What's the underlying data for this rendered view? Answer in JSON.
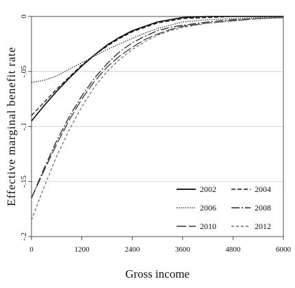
{
  "chart_data": {
    "type": "line",
    "title": "",
    "xlabel": "Gross income",
    "ylabel": "Effective marginal benefit rate",
    "xlim": [
      0,
      6000
    ],
    "ylim": [
      -0.2,
      0
    ],
    "xticks": [
      0,
      1200,
      2400,
      3600,
      4800,
      6000
    ],
    "xtick_labels": [
      "0",
      "1200",
      "2400",
      "3600",
      "4800",
      "6000"
    ],
    "yticks": [
      0,
      -0.05,
      -0.1,
      -0.15,
      -0.2
    ],
    "ytick_labels": [
      "0",
      "-.05",
      "-.1",
      "-.15",
      "-.2"
    ],
    "grid": "horizontal",
    "legend_position": "bottom-right",
    "series": [
      {
        "name": "2002",
        "dash": "solid",
        "x": [
          0,
          300,
          600,
          900,
          1200,
          1500,
          1800,
          2100,
          2400,
          2700,
          3000,
          3300,
          3600,
          4200,
          4800,
          5400,
          6000
        ],
        "y": [
          -0.095,
          -0.081,
          -0.068,
          -0.056,
          -0.045,
          -0.035,
          -0.026,
          -0.019,
          -0.013,
          -0.009,
          -0.005,
          -0.003,
          -0.001,
          0.0,
          0.0,
          0.0,
          0.0
        ]
      },
      {
        "name": "2004",
        "dash": "dashed",
        "x": [
          0,
          300,
          600,
          900,
          1200,
          1500,
          1800,
          2100,
          2400,
          2700,
          3000,
          3300,
          3600,
          4200,
          4800,
          5400,
          6000
        ],
        "y": [
          -0.09,
          -0.078,
          -0.066,
          -0.055,
          -0.044,
          -0.035,
          -0.027,
          -0.02,
          -0.014,
          -0.01,
          -0.006,
          -0.004,
          -0.002,
          -0.001,
          0.0,
          0.0,
          0.0
        ]
      },
      {
        "name": "2006",
        "dash": "dotted",
        "x": [
          0,
          300,
          600,
          900,
          1200,
          1500,
          1800,
          2100,
          2400,
          2700,
          3000,
          3300,
          3600,
          4200,
          4800,
          5400,
          6000
        ],
        "y": [
          -0.06,
          -0.058,
          -0.054,
          -0.048,
          -0.042,
          -0.036,
          -0.03,
          -0.025,
          -0.02,
          -0.015,
          -0.011,
          -0.008,
          -0.005,
          -0.003,
          -0.002,
          -0.001,
          0.0
        ]
      },
      {
        "name": "2008",
        "dash": "longdash",
        "x": [
          0,
          300,
          600,
          900,
          1200,
          1500,
          1800,
          2100,
          2400,
          2700,
          3000,
          3300,
          3600,
          4200,
          4800,
          5400,
          6000
        ],
        "y": [
          -0.165,
          -0.138,
          -0.113,
          -0.091,
          -0.072,
          -0.056,
          -0.043,
          -0.032,
          -0.024,
          -0.018,
          -0.013,
          -0.01,
          -0.008,
          -0.005,
          -0.003,
          -0.002,
          -0.001
        ]
      },
      {
        "name": "2010",
        "dash": "longerdash",
        "x": [
          0,
          300,
          600,
          900,
          1200,
          1500,
          1800,
          2100,
          2400,
          2700,
          3000,
          3300,
          3600,
          4200,
          4800,
          5400,
          6000
        ],
        "y": [
          -0.165,
          -0.14,
          -0.116,
          -0.094,
          -0.075,
          -0.059,
          -0.046,
          -0.036,
          -0.028,
          -0.021,
          -0.016,
          -0.012,
          -0.009,
          -0.006,
          -0.004,
          -0.002,
          -0.001
        ]
      },
      {
        "name": "2012",
        "dash": "shortdash",
        "x": [
          0,
          300,
          600,
          900,
          1200,
          1500,
          1800,
          2100,
          2400,
          2700,
          3000,
          3300,
          3600,
          4200,
          4800,
          5400,
          6000
        ],
        "y": [
          -0.185,
          -0.155,
          -0.127,
          -0.103,
          -0.082,
          -0.064,
          -0.05,
          -0.039,
          -0.03,
          -0.023,
          -0.017,
          -0.013,
          -0.01,
          -0.006,
          -0.004,
          -0.002,
          -0.001
        ]
      }
    ]
  }
}
